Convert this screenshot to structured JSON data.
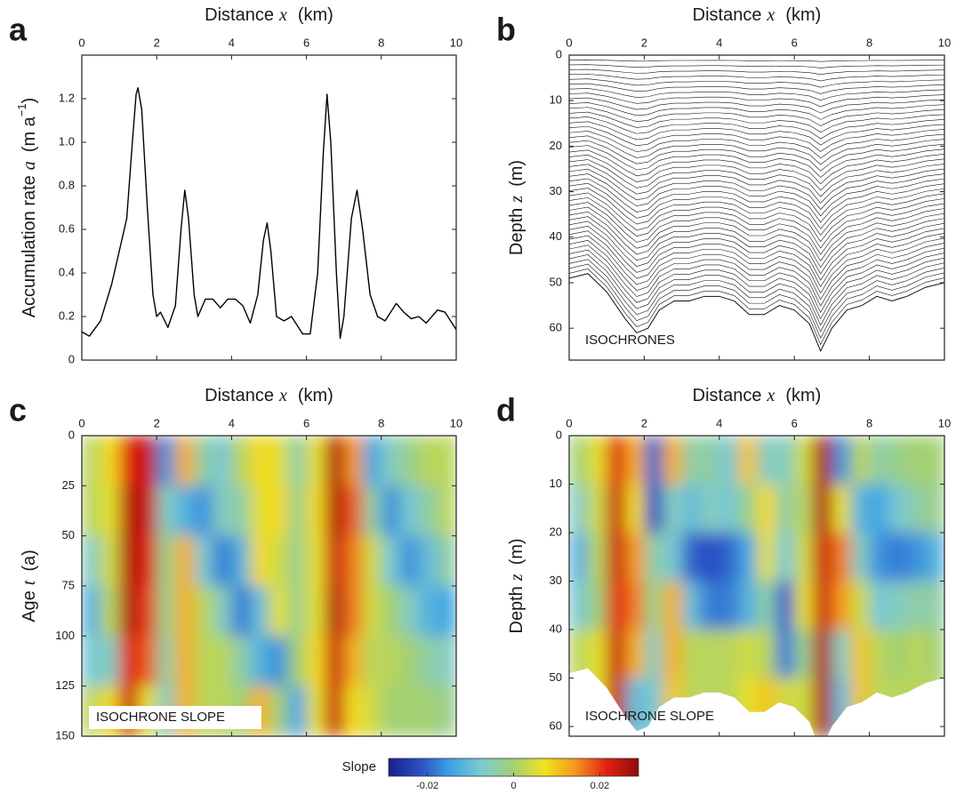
{
  "chart_data": [
    {
      "type": "line",
      "panel": "a",
      "xlabel": [
        "Distance",
        "x",
        "(km)"
      ],
      "ylabel": [
        "Accumulation rate",
        "a",
        "(m a",
        "−1",
        ")"
      ],
      "x": [
        0,
        0.2,
        0.5,
        0.8,
        1.0,
        1.2,
        1.35,
        1.45,
        1.5,
        1.6,
        1.75,
        1.9,
        2.0,
        2.1,
        2.3,
        2.5,
        2.65,
        2.75,
        2.85,
        3.0,
        3.1,
        3.3,
        3.5,
        3.7,
        3.9,
        4.1,
        4.3,
        4.5,
        4.7,
        4.85,
        4.95,
        5.05,
        5.2,
        5.4,
        5.6,
        5.9,
        6.1,
        6.3,
        6.45,
        6.55,
        6.65,
        6.8,
        6.9,
        7.0,
        7.2,
        7.35,
        7.5,
        7.7,
        7.9,
        8.1,
        8.4,
        8.6,
        8.8,
        9.0,
        9.2,
        9.5,
        9.7,
        10.0
      ],
      "values": [
        0.13,
        0.11,
        0.18,
        0.35,
        0.5,
        0.65,
        1.0,
        1.22,
        1.25,
        1.15,
        0.7,
        0.3,
        0.2,
        0.22,
        0.15,
        0.25,
        0.6,
        0.78,
        0.65,
        0.3,
        0.2,
        0.28,
        0.28,
        0.24,
        0.28,
        0.28,
        0.25,
        0.17,
        0.3,
        0.55,
        0.63,
        0.5,
        0.2,
        0.18,
        0.2,
        0.12,
        0.12,
        0.4,
        0.95,
        1.22,
        1.0,
        0.4,
        0.1,
        0.2,
        0.65,
        0.78,
        0.6,
        0.3,
        0.2,
        0.18,
        0.26,
        0.22,
        0.19,
        0.2,
        0.17,
        0.23,
        0.22,
        0.14
      ],
      "color": "#000000",
      "xlim": [
        0,
        10
      ],
      "xticks": [
        0,
        2,
        4,
        6,
        8,
        10
      ],
      "ylim": [
        0,
        1.4
      ],
      "yticks": [
        0,
        0.2,
        0.4,
        0.6,
        0.8,
        {
          "value": 1,
          "label": "1.0"
        },
        1.2
      ]
    },
    {
      "type": "isochrones",
      "panel": "b",
      "xlabel": [
        "Distance",
        "x",
        "(km)"
      ],
      "ylabel": [
        "Depth",
        "z",
        "(m)"
      ],
      "annotation": "ISOCHRONES",
      "bed": {
        "x": [
          0,
          0.5,
          1,
          1.5,
          1.8,
          2.1,
          2.4,
          2.8,
          3.2,
          3.6,
          4,
          4.4,
          4.8,
          5.2,
          5.6,
          6,
          6.4,
          6.7,
          7,
          7.4,
          7.8,
          8.2,
          8.6,
          9,
          9.5,
          10
        ],
        "depth": [
          49,
          48,
          52,
          58,
          61,
          60,
          56,
          54,
          54,
          53,
          53,
          54,
          57,
          57,
          55,
          56,
          59,
          65,
          60,
          56,
          55,
          53,
          54,
          53,
          51,
          50
        ]
      },
      "xlim": [
        0,
        10
      ],
      "xticks": [
        0,
        2,
        4,
        6,
        8,
        10
      ],
      "ylim": [
        0,
        67
      ],
      "yticks": [
        0,
        10,
        20,
        30,
        40,
        50,
        60
      ],
      "y_inverted": true
    },
    {
      "type": "heatmap",
      "panel": "c",
      "xlabel": [
        "Distance",
        "x",
        "(km)"
      ],
      "ylabel": [
        "Age",
        "t",
        "(a)"
      ],
      "annotation": "ISOCHRONE SLOPE",
      "x": [
        0.25,
        0.75,
        1.25,
        1.75,
        2.25,
        2.75,
        3.25,
        3.75,
        4.25,
        4.75,
        5.25,
        5.75,
        6.25,
        6.75,
        7.25,
        7.75,
        8.25,
        8.75,
        9.25,
        9.75
      ],
      "y": [
        12.5,
        37.5,
        62.5,
        87.5,
        112.5,
        137.5
      ],
      "z": [
        [
          0.002,
          0.008,
          0.022,
          0.024,
          -0.016,
          0.012,
          -0.004,
          -0.008,
          0.002,
          0.008,
          0.006,
          -0.004,
          0.006,
          0.026,
          0.014,
          -0.014,
          -0.006,
          -0.002,
          0.002,
          0.002
        ],
        [
          0.002,
          0.006,
          0.026,
          0.024,
          -0.006,
          -0.012,
          -0.016,
          -0.006,
          -0.004,
          0.006,
          0.008,
          -0.002,
          0.008,
          0.026,
          0.018,
          -0.004,
          -0.016,
          -0.008,
          -0.004,
          0.002
        ],
        [
          -0.006,
          0.004,
          0.026,
          0.022,
          -0.002,
          0.012,
          -0.008,
          -0.018,
          -0.012,
          0.008,
          0.004,
          -0.002,
          0.006,
          0.024,
          0.016,
          0.004,
          -0.008,
          -0.016,
          -0.01,
          -0.004
        ],
        [
          -0.012,
          0.002,
          0.026,
          0.02,
          -0.002,
          0.012,
          0.002,
          -0.006,
          -0.018,
          -0.01,
          0.006,
          -0.002,
          0.006,
          0.026,
          0.016,
          0.004,
          0,
          -0.006,
          -0.012,
          -0.014
        ],
        [
          -0.008,
          -0.006,
          0.022,
          0.018,
          -0.004,
          0.012,
          0.002,
          0.002,
          -0.004,
          -0.012,
          -0.016,
          0,
          0.008,
          0.024,
          0.012,
          0.002,
          0.002,
          0,
          -0.004,
          -0.006
        ],
        [
          0.002,
          0.008,
          0.024,
          0.006,
          -0.006,
          0.012,
          0.002,
          0.002,
          0,
          0.012,
          0,
          -0.014,
          0.006,
          0.024,
          0.008,
          0.004,
          0,
          0,
          0,
          -0.002
        ]
      ],
      "xlim": [
        0,
        10
      ],
      "xticks": [
        0,
        2,
        4,
        6,
        8,
        10
      ],
      "ylim": [
        0,
        150
      ],
      "yticks": [
        0,
        25,
        50,
        75,
        100,
        125,
        150
      ],
      "y_inverted": true
    },
    {
      "type": "heatmap",
      "panel": "d",
      "xlabel": [
        "Distance",
        "x",
        "(km)"
      ],
      "ylabel": [
        "Depth",
        "z",
        "(m)"
      ],
      "annotation": "ISOCHRONE SLOPE",
      "x": [
        0.25,
        0.75,
        1.25,
        1.75,
        2.25,
        2.75,
        3.25,
        3.75,
        4.25,
        4.75,
        5.25,
        5.75,
        6.25,
        6.75,
        7.25,
        7.75,
        8.25,
        8.75,
        9.25,
        9.75
      ],
      "y": [
        5,
        15,
        25,
        35,
        45,
        55
      ],
      "z": [
        [
          0,
          0.006,
          0.022,
          0.012,
          -0.02,
          0.012,
          -0.004,
          -0.004,
          -0.008,
          0.01,
          -0.006,
          -0.006,
          0.004,
          0.026,
          -0.016,
          0.002,
          -0.004,
          -0.002,
          0,
          0
        ],
        [
          -0.006,
          0.004,
          0.024,
          0.008,
          -0.022,
          -0.006,
          -0.01,
          -0.006,
          -0.008,
          -0.002,
          0.008,
          -0.004,
          0.002,
          0.026,
          0.006,
          -0.012,
          -0.014,
          -0.008,
          -0.004,
          -0.002
        ],
        [
          -0.012,
          0.002,
          0.024,
          0.014,
          -0.004,
          -0.008,
          -0.02,
          -0.022,
          -0.02,
          -0.014,
          0.006,
          -0.008,
          0.004,
          0.024,
          0.016,
          -0.006,
          -0.016,
          -0.018,
          -0.016,
          -0.012
        ],
        [
          -0.008,
          0,
          0.022,
          0.016,
          -0.002,
          0.012,
          -0.01,
          -0.018,
          -0.018,
          -0.012,
          -0.004,
          -0.02,
          0.006,
          0.024,
          0.014,
          0.004,
          -0.008,
          -0.006,
          -0.004,
          -0.004
        ],
        [
          0.002,
          0.006,
          0.024,
          0.012,
          -0.006,
          0.012,
          0.002,
          0.002,
          0.002,
          0.004,
          0.002,
          -0.018,
          -0.002,
          0.026,
          -0.006,
          0.01,
          0.002,
          0,
          0.002,
          0
        ],
        [
          0.002,
          0.006,
          0.024,
          -0.01,
          -0.008,
          0.01,
          0.002,
          0.002,
          0.002,
          0.006,
          0.01,
          0.004,
          0.004,
          0.026,
          -0.01,
          0.01,
          0.002,
          0.002,
          0.002,
          0.002
        ]
      ],
      "bed": {
        "x": [
          0,
          0.5,
          1,
          1.5,
          1.8,
          2.1,
          2.4,
          2.8,
          3.2,
          3.6,
          4,
          4.4,
          4.8,
          5.2,
          5.6,
          6,
          6.4,
          6.7,
          7,
          7.4,
          7.8,
          8.2,
          8.6,
          9,
          9.5,
          10
        ],
        "depth": [
          49,
          48,
          52,
          58,
          61,
          60,
          56,
          54,
          54,
          53,
          53,
          54,
          57,
          57,
          55,
          56,
          59,
          65,
          60,
          56,
          55,
          53,
          54,
          53,
          51,
          50
        ]
      },
      "xlim": [
        0,
        10
      ],
      "xticks": [
        0,
        2,
        4,
        6,
        8,
        10
      ],
      "ylim": [
        0,
        62
      ],
      "yticks": [
        0,
        10,
        20,
        30,
        40,
        50,
        60
      ],
      "y_inverted": true
    }
  ],
  "colorbar": {
    "label": "Slope",
    "clim": [
      -0.029,
      0.029
    ],
    "ticks": [
      -0.02,
      0,
      0.02
    ],
    "colors": [
      "#1c1f8a",
      "#2a4fc4",
      "#3fa4e4",
      "#7fcbd0",
      "#a3d072",
      "#f2e21e",
      "#f5941e",
      "#e02010",
      "#8e0b0b"
    ]
  }
}
